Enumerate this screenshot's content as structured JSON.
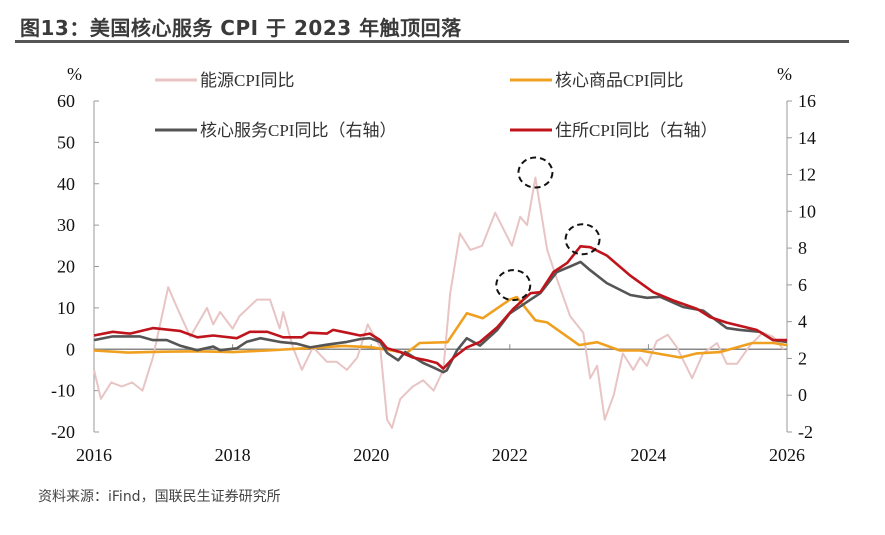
{
  "title": "图13：美国核心服务 CPI 于 2023 年触顶回落",
  "source": "资料来源：iFind，国联民生证券研究所",
  "chart_data": {
    "type": "line",
    "left_unit": "%",
    "right_unit": "%",
    "left_ylim": [
      -20,
      60
    ],
    "left_ticks": [
      "60",
      "50",
      "40",
      "30",
      "20",
      "10",
      "0",
      "-10",
      "-20"
    ],
    "right_ylim": [
      -2,
      16
    ],
    "right_ticks": [
      "16",
      "14",
      "12",
      "10",
      "8",
      "6",
      "4",
      "2",
      "0",
      "-2"
    ],
    "xlim": [
      2016,
      2026
    ],
    "x_ticks": [
      "2016",
      "2018",
      "2020",
      "2022",
      "2024",
      "2026"
    ],
    "grid": false,
    "legend_placement": "top",
    "series": [
      {
        "name": "能源CPI同比",
        "axis": "left",
        "color": "#e8c4c4",
        "x": [
          2016.0,
          2016.1,
          2016.25,
          2016.4,
          2016.55,
          2016.7,
          2016.85,
          2017.07,
          2017.2,
          2017.39,
          2017.63,
          2017.72,
          2017.82,
          2018.0,
          2018.1,
          2018.35,
          2018.54,
          2018.68,
          2018.73,
          2018.87,
          2019.0,
          2019.16,
          2019.36,
          2019.5,
          2019.65,
          2019.8,
          2019.95,
          2020.13,
          2020.23,
          2020.3,
          2020.42,
          2020.6,
          2020.75,
          2020.9,
          2021.04,
          2021.14,
          2021.28,
          2021.43,
          2021.6,
          2021.79,
          2022.03,
          2022.15,
          2022.25,
          2022.37,
          2022.54,
          2022.68,
          2022.87,
          2023.06,
          2023.16,
          2023.26,
          2023.37,
          2023.5,
          2023.63,
          2023.78,
          2023.88,
          2023.98,
          2024.12,
          2024.28,
          2024.41,
          2024.63,
          2024.79,
          2024.99,
          2025.13,
          2025.28,
          2025.47,
          2025.65,
          2025.8,
          2025.95
        ],
        "values": [
          -5,
          -12,
          -8,
          -9,
          -8,
          -10,
          -2,
          15,
          10,
          3,
          10,
          6,
          9,
          5,
          8,
          12,
          12,
          5,
          9,
          0.5,
          -5,
          0.5,
          -3,
          -3,
          -5,
          -2,
          6,
          0.5,
          -17,
          -19,
          -12,
          -9,
          -7.5,
          -10,
          -5,
          13.5,
          28,
          24,
          25,
          33,
          25,
          32,
          30,
          41.5,
          24,
          17,
          8,
          4,
          -7,
          -4,
          -17,
          -11,
          -1,
          -5,
          -2,
          -4,
          2,
          3.5,
          0.5,
          -7,
          -1,
          1.5,
          -3.5,
          -3.5,
          1,
          4,
          3,
          0
        ]
      },
      {
        "name": "核心商品CPI同比",
        "axis": "left",
        "color": "#f0a020",
        "x": [
          2016.0,
          2016.5,
          2017.0,
          2017.5,
          2018.0,
          2018.5,
          2019.0,
          2019.6,
          2020.0,
          2020.3,
          2020.5,
          2020.7,
          2021.1,
          2021.38,
          2021.61,
          2022.0,
          2022.1,
          2022.37,
          2022.54,
          2023.0,
          2023.26,
          2023.59,
          2023.88,
          2024.46,
          2024.7,
          2025.03,
          2025.5,
          2025.8,
          2026.0
        ],
        "values": [
          -0.3,
          -0.8,
          -0.6,
          -0.5,
          -0.7,
          -0.3,
          0.2,
          0.8,
          0.5,
          -0.3,
          -1,
          1.5,
          1.7,
          8.7,
          7.5,
          12,
          12.6,
          7,
          6.5,
          1,
          1.7,
          -0.3,
          -0.3,
          -2,
          -1,
          -0.7,
          1.5,
          1.5,
          1
        ]
      },
      {
        "name": "核心服务CPI同比（右轴）",
        "axis": "right",
        "color": "#555555",
        "x": [
          2016.0,
          2016.27,
          2016.66,
          2016.85,
          2017.05,
          2017.24,
          2017.49,
          2017.72,
          2017.82,
          2018.06,
          2018.2,
          2018.4,
          2018.68,
          2018.93,
          2019.12,
          2019.36,
          2019.65,
          2019.84,
          2019.98,
          2020.13,
          2020.23,
          2020.39,
          2020.49,
          2020.75,
          2020.9,
          2021.04,
          2021.09,
          2021.24,
          2021.38,
          2021.57,
          2021.82,
          2022.0,
          2022.3,
          2022.44,
          2022.68,
          2022.87,
          2023.02,
          2023.16,
          2023.4,
          2023.74,
          2023.98,
          2024.17,
          2024.5,
          2024.79,
          2025.13,
          2025.32,
          2025.61,
          2025.8,
          2026.0
        ],
        "values": [
          3.0,
          3.2,
          3.2,
          3.0,
          3.0,
          2.7,
          2.45,
          2.65,
          2.45,
          2.55,
          2.9,
          3.1,
          2.9,
          2.8,
          2.6,
          2.75,
          2.9,
          3.05,
          3.1,
          2.9,
          2.3,
          1.9,
          2.35,
          1.75,
          1.5,
          1.25,
          1.35,
          2.45,
          3.1,
          2.7,
          3.55,
          4.45,
          5.2,
          5.55,
          6.7,
          7.0,
          7.25,
          6.8,
          6.1,
          5.45,
          5.3,
          5.35,
          4.8,
          4.6,
          3.65,
          3.55,
          3.45,
          3.0,
          2.9
        ]
      },
      {
        "name": "住所CPI同比（右轴）",
        "axis": "right",
        "color": "#c0141c",
        "x": [
          2016.0,
          2016.27,
          2016.52,
          2016.85,
          2017.24,
          2017.49,
          2017.72,
          2018.06,
          2018.25,
          2018.5,
          2018.73,
          2019.0,
          2019.1,
          2019.36,
          2019.45,
          2019.65,
          2019.84,
          2019.98,
          2020.13,
          2020.23,
          2020.42,
          2020.6,
          2020.8,
          2020.95,
          2021.04,
          2021.19,
          2021.38,
          2021.57,
          2021.82,
          2022.05,
          2022.3,
          2022.44,
          2022.63,
          2022.83,
          2023.02,
          2023.16,
          2023.4,
          2023.74,
          2024.07,
          2024.36,
          2024.7,
          2024.89,
          2025.13,
          2025.56,
          2025.8,
          2026.0
        ],
        "values": [
          3.25,
          3.45,
          3.35,
          3.65,
          3.5,
          3.15,
          3.25,
          3.1,
          3.45,
          3.45,
          3.15,
          3.15,
          3.4,
          3.35,
          3.55,
          3.4,
          3.25,
          3.35,
          3.0,
          2.55,
          2.35,
          2.05,
          1.9,
          1.75,
          1.45,
          2.05,
          2.6,
          2.9,
          3.7,
          4.7,
          5.55,
          5.6,
          6.7,
          7.2,
          8.1,
          8.05,
          7.6,
          6.5,
          5.6,
          5.15,
          4.7,
          4.25,
          3.95,
          3.55,
          3.0,
          3.0
        ]
      }
    ]
  }
}
